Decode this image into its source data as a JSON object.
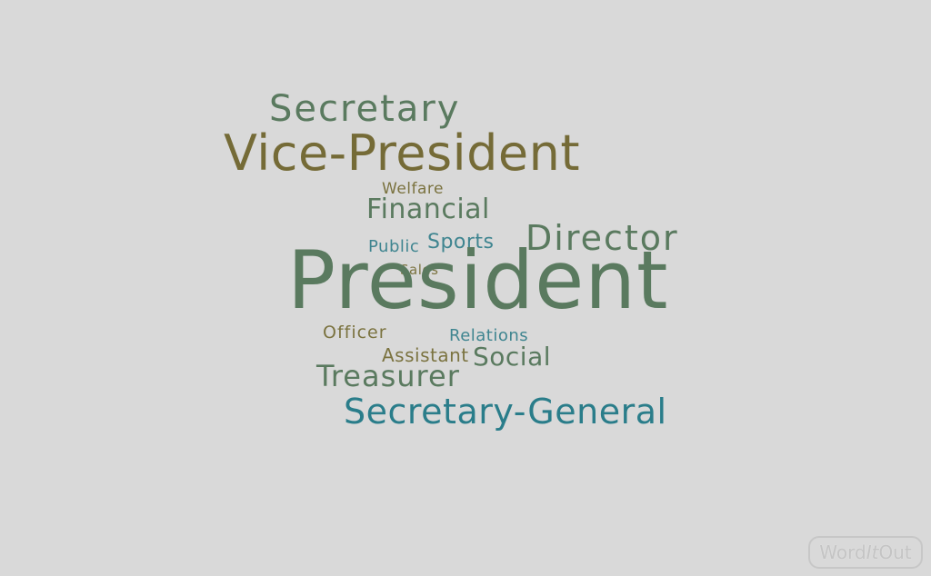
{
  "words": [
    {
      "key": "secretary",
      "text": "Secretary",
      "color": "#5a7a5f"
    },
    {
      "key": "vice_president",
      "text": "Vice-President",
      "color": "#756b37"
    },
    {
      "key": "welfare",
      "text": "Welfare",
      "color": "#7b7340"
    },
    {
      "key": "financial",
      "text": "Financial",
      "color": "#5a7a5f"
    },
    {
      "key": "public",
      "text": "Public",
      "color": "#3f8590"
    },
    {
      "key": "sports",
      "text": "Sports",
      "color": "#3f8590"
    },
    {
      "key": "director",
      "text": "Director",
      "color": "#5a7a5f"
    },
    {
      "key": "sales",
      "text": "Sales",
      "color": "#7b7340"
    },
    {
      "key": "president",
      "text": "President",
      "color": "#5a7a5f"
    },
    {
      "key": "officer",
      "text": "Officer",
      "color": "#7b7340"
    },
    {
      "key": "relations",
      "text": "Relations",
      "color": "#3f8590"
    },
    {
      "key": "assistant",
      "text": "Assistant",
      "color": "#7b7340"
    },
    {
      "key": "social",
      "text": "Social",
      "color": "#5a7a5f"
    },
    {
      "key": "treasurer",
      "text": "Treasurer",
      "color": "#5a7a5f"
    },
    {
      "key": "secretary_general",
      "text": "Secretary-General",
      "color": "#2a7d8a"
    }
  ],
  "logo": {
    "word": "Word",
    "it": "It",
    "out": "Out"
  }
}
